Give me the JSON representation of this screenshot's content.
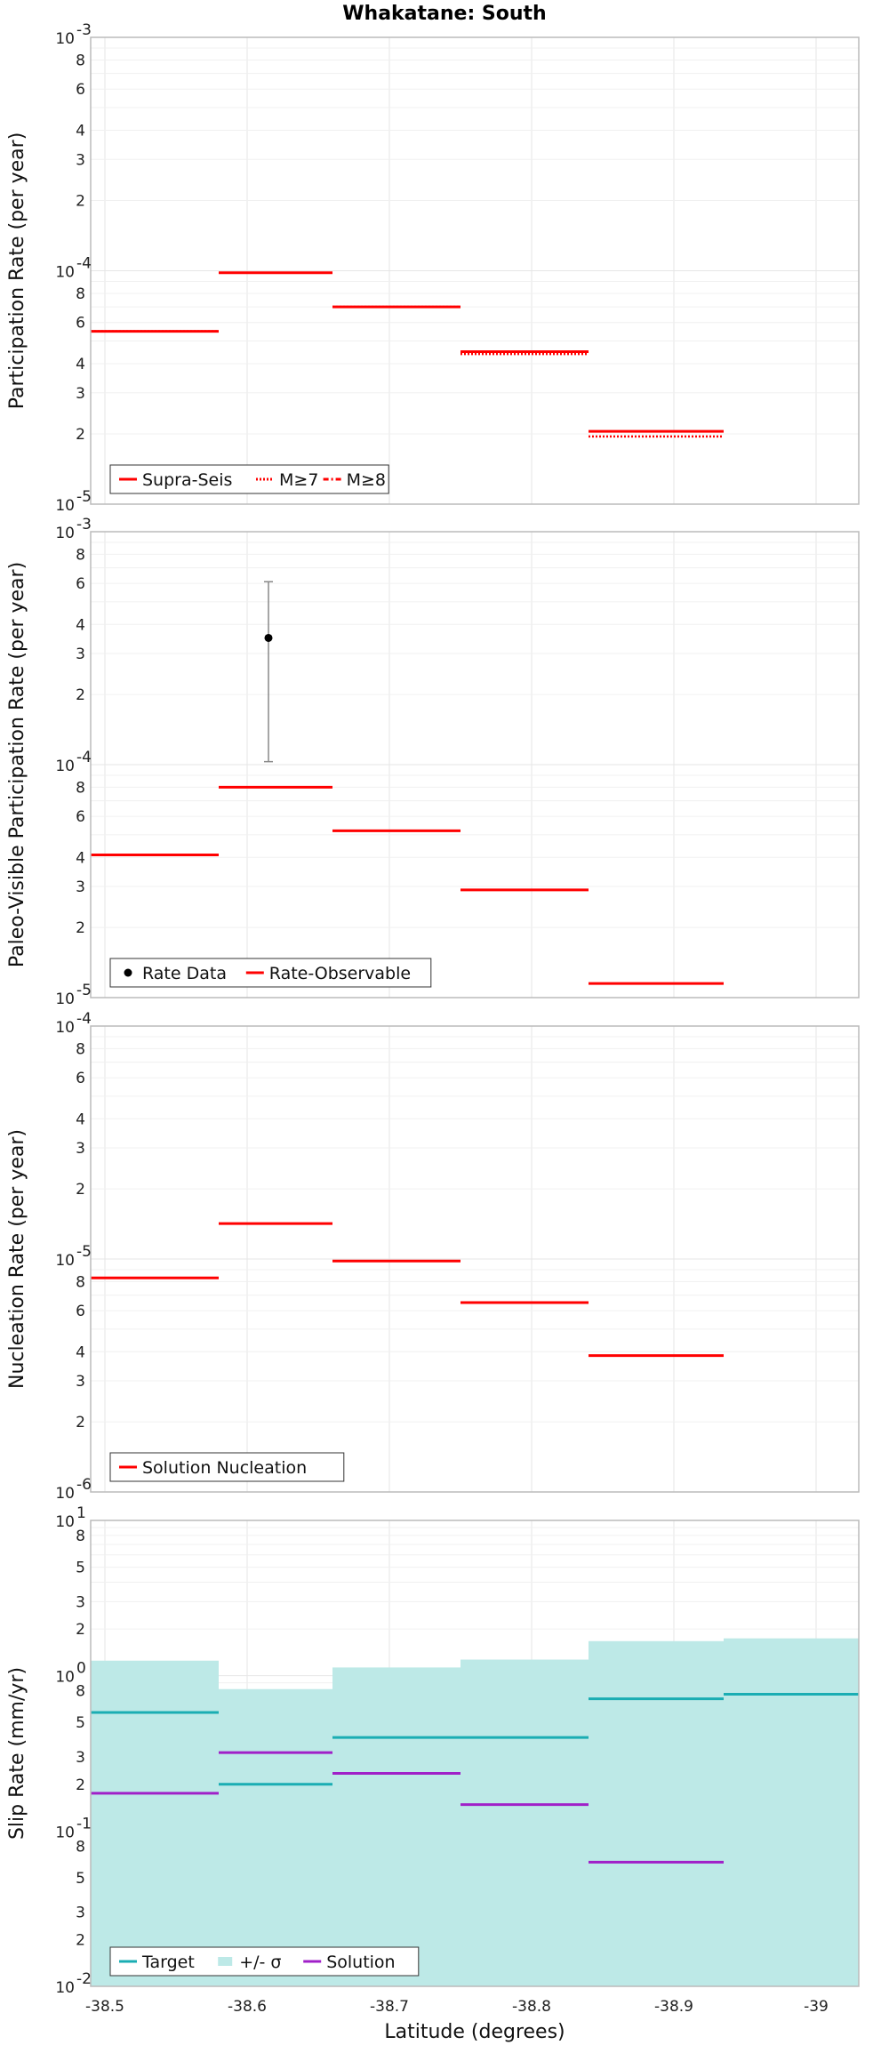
{
  "figure": {
    "title": "Whakatane: South",
    "xlabel": "Latitude (degrees)",
    "xticks": [
      -38.5,
      -38.6,
      -38.7,
      -38.8,
      -38.9,
      -39
    ],
    "xtick_labels": [
      "-38.5",
      "-38.6",
      "-38.7",
      "-38.8",
      "-38.9",
      "-39"
    ],
    "xlim": [
      -38.49,
      -39.03
    ],
    "colors": {
      "red": "#ff0000",
      "cyan": "#1aadb3",
      "band": "#bde9e7",
      "purple": "#a020c8",
      "grid": "#e6e6e6",
      "frame": "#bbbbbb"
    }
  },
  "chart_data": [
    {
      "type": "line",
      "panel": "participation",
      "ylabel": "Participation Rate (per year)",
      "yscale": "log",
      "ylim": [
        1e-05,
        0.001
      ],
      "decades": [
        {
          "base": "10",
          "exp": "-5"
        },
        {
          "base": "10",
          "exp": "-4"
        },
        {
          "base": "10",
          "exp": "-3"
        }
      ],
      "minor_labels": [
        "2",
        "3",
        "4",
        "6",
        "8"
      ],
      "bins": [
        [
          -38.49,
          -38.58
        ],
        [
          -38.58,
          -38.66
        ],
        [
          -38.66,
          -38.75
        ],
        [
          -38.75,
          -38.84
        ],
        [
          -38.84,
          -38.935
        ]
      ],
      "series": [
        {
          "name": "Supra-Seis",
          "style": "solid",
          "values": [
            5.5e-05,
            9.8e-05,
            7e-05,
            4.5e-05,
            2.05e-05
          ]
        },
        {
          "name": "M≥7",
          "style": "dotted",
          "values": [
            5.5e-05,
            9.8e-05,
            7e-05,
            4.4e-05,
            1.95e-05
          ]
        },
        {
          "name": "M≥8",
          "style": "dashdot",
          "values": [
            null,
            null,
            null,
            null,
            null
          ]
        }
      ],
      "legend": "bottom-left"
    },
    {
      "type": "line",
      "panel": "paleo",
      "ylabel": "Paleo-Visible Participation Rate (per year)",
      "yscale": "log",
      "ylim": [
        1e-05,
        0.001
      ],
      "decades": [
        {
          "base": "10",
          "exp": "-5"
        },
        {
          "base": "10",
          "exp": "-4"
        },
        {
          "base": "10",
          "exp": "-3"
        }
      ],
      "minor_labels": [
        "2",
        "3",
        "4",
        "6",
        "8"
      ],
      "bins": [
        [
          -38.49,
          -38.58
        ],
        [
          -38.58,
          -38.66
        ],
        [
          -38.66,
          -38.75
        ],
        [
          -38.75,
          -38.84
        ],
        [
          -38.84,
          -38.935
        ]
      ],
      "series": [
        {
          "name": "Rate Data",
          "style": "point",
          "points": [
            {
              "x": -38.615,
              "y": 0.00035,
              "ylow": 0.000103,
              "yhigh": 0.00061
            }
          ]
        },
        {
          "name": "Rate-Observable",
          "style": "solid",
          "values": [
            4.1e-05,
            8e-05,
            5.2e-05,
            2.9e-05,
            1.15e-05
          ]
        }
      ],
      "legend": "bottom-left"
    },
    {
      "type": "line",
      "panel": "nucleation",
      "ylabel": "Nucleation Rate (per year)",
      "yscale": "log",
      "ylim": [
        1e-06,
        0.0001
      ],
      "decades": [
        {
          "base": "10",
          "exp": "-6"
        },
        {
          "base": "10",
          "exp": "-5"
        },
        {
          "base": "10",
          "exp": "-4"
        }
      ],
      "minor_labels": [
        "2",
        "3",
        "4",
        "6",
        "8"
      ],
      "bins": [
        [
          -38.49,
          -38.58
        ],
        [
          -38.58,
          -38.66
        ],
        [
          -38.66,
          -38.75
        ],
        [
          -38.75,
          -38.84
        ],
        [
          -38.84,
          -38.935
        ]
      ],
      "series": [
        {
          "name": "Solution Nucleation",
          "style": "solid",
          "values": [
            8.3e-06,
            1.42e-05,
            9.8e-06,
            6.5e-06,
            3.85e-06
          ]
        }
      ],
      "legend": "bottom-left"
    },
    {
      "type": "line",
      "panel": "slip",
      "ylabel": "Slip Rate (mm/yr)",
      "yscale": "log",
      "ylim": [
        0.01,
        10
      ],
      "decades": [
        {
          "base": "10",
          "exp": "-2"
        },
        {
          "base": "10",
          "exp": "-1"
        },
        {
          "base": "10",
          "exp": "0"
        },
        {
          "base": "10",
          "exp": "1"
        }
      ],
      "minor_labels": [
        "2",
        "3",
        "5",
        "8"
      ],
      "bins": [
        [
          -38.49,
          -38.58
        ],
        [
          -38.58,
          -38.66
        ],
        [
          -38.66,
          -38.75
        ],
        [
          -38.75,
          -38.84
        ],
        [
          -38.84,
          -38.935
        ],
        [
          -38.935,
          -39.03
        ]
      ],
      "series": [
        {
          "name": "Target",
          "style": "solid",
          "values": [
            0.58,
            0.2,
            0.4,
            0.4,
            0.71,
            0.76
          ]
        },
        {
          "name": "+/- σ",
          "style": "band",
          "low": [
            0.01,
            0.01,
            0.01,
            0.01,
            0.01,
            0.01
          ],
          "high": [
            1.25,
            0.82,
            1.13,
            1.27,
            1.67,
            1.74
          ]
        },
        {
          "name": "Solution",
          "style": "solid",
          "values": [
            0.175,
            0.32,
            0.235,
            0.148,
            0.063,
            null
          ]
        }
      ],
      "legend": "bottom-left"
    }
  ]
}
